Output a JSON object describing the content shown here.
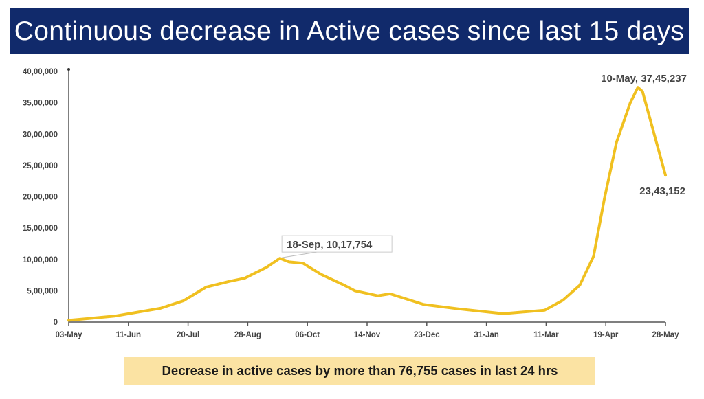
{
  "header": {
    "title": "Continuous decrease in Active cases since last 15 days"
  },
  "banner": {
    "text": "Decrease in active cases by more than 76,755 cases in last 24 hrs"
  },
  "chart_data": {
    "type": "line",
    "title": "",
    "xlabel": "",
    "ylabel": "",
    "line_color": "#f0c020",
    "xlim": [
      "2020-05-03",
      "2021-05-28"
    ],
    "ylim": [
      0,
      4000000
    ],
    "grid": false,
    "x_ticks": [
      "03-May",
      "11-Jun",
      "20-Jul",
      "28-Aug",
      "06-Oct",
      "14-Nov",
      "23-Dec",
      "31-Jan",
      "11-Mar",
      "19-Apr",
      "28-May"
    ],
    "y_ticks": [
      0,
      500000,
      1000000,
      1500000,
      2000000,
      2500000,
      3000000,
      3500000,
      4000000
    ],
    "y_tick_labels": [
      "0",
      "5,00,000",
      "10,00,000",
      "15,00,000",
      "20,00,000",
      "25,00,000",
      "30,00,000",
      "35,00,000",
      "40,00,000"
    ],
    "series": [
      {
        "points": [
          [
            "2020-05-03",
            29000
          ],
          [
            "2020-06-02",
            95000
          ],
          [
            "2020-07-02",
            220000
          ],
          [
            "2020-07-17",
            340000
          ],
          [
            "2020-08-01",
            560000
          ],
          [
            "2020-08-16",
            650000
          ],
          [
            "2020-08-26",
            700000
          ],
          [
            "2020-09-09",
            870000
          ],
          [
            "2020-09-18",
            1017754
          ],
          [
            "2020-09-24",
            960000
          ],
          [
            "2020-10-03",
            940000
          ],
          [
            "2020-10-15",
            760000
          ],
          [
            "2020-10-30",
            590000
          ],
          [
            "2020-11-06",
            500000
          ],
          [
            "2020-11-21",
            420000
          ],
          [
            "2020-11-29",
            450000
          ],
          [
            "2020-12-21",
            280000
          ],
          [
            "2021-01-13",
            210000
          ],
          [
            "2021-02-11",
            135000
          ],
          [
            "2021-03-10",
            190000
          ],
          [
            "2021-03-22",
            350000
          ],
          [
            "2021-04-02",
            590000
          ],
          [
            "2021-04-11",
            1050000
          ],
          [
            "2021-04-18",
            1960000
          ],
          [
            "2021-04-26",
            2870000
          ],
          [
            "2021-05-05",
            3500000
          ],
          [
            "2021-05-10",
            3745237
          ],
          [
            "2021-05-13",
            3680000
          ],
          [
            "2021-05-28",
            2343152
          ]
        ]
      }
    ],
    "annotations": [
      {
        "text": "18-Sep, 10,17,754",
        "date": "2020-09-18",
        "value": 1017754,
        "boxed": true
      },
      {
        "text": "10-May, 37,45,237",
        "date": "2021-05-10",
        "value": 3745237,
        "boxed": false
      },
      {
        "text": "23,43,152",
        "date": "2021-05-28",
        "value": 2343152,
        "boxed": false
      }
    ]
  }
}
